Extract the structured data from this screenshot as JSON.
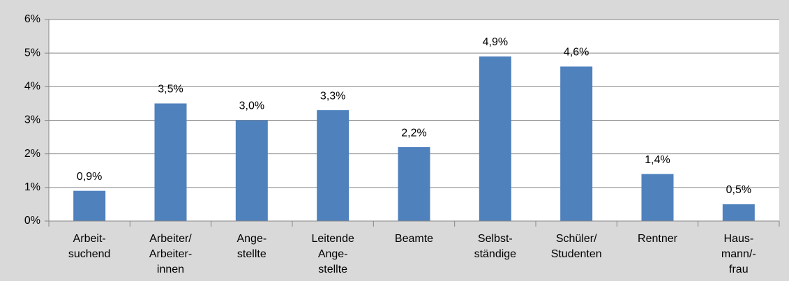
{
  "chart_data": {
    "type": "bar",
    "categories": [
      "Arbeit-\nsuchend",
      "Arbeiter/\nArbeiter-\ninnen",
      "Ange-\nstellte",
      "Leitende\nAnge-\nstellte",
      "Beamte",
      "Selbst-\nständige",
      "Schüler/\nStudenten",
      "Rentner",
      "Haus-\nmann/-\nfrau"
    ],
    "values": [
      0.9,
      3.5,
      3.0,
      3.3,
      2.2,
      4.9,
      4.6,
      1.4,
      0.5
    ],
    "value_labels": [
      "0,9%",
      "3,5%",
      "3,0%",
      "3,3%",
      "2,2%",
      "4,9%",
      "4,6%",
      "1,4%",
      "0,5%"
    ],
    "color": "#4f81bd",
    "ylim": [
      0,
      6
    ],
    "yticks": [
      {
        "value": 0,
        "label": "0%"
      },
      {
        "value": 1,
        "label": "1%"
      },
      {
        "value": 2,
        "label": "2%"
      },
      {
        "value": 3,
        "label": "3%"
      },
      {
        "value": 4,
        "label": "4%"
      },
      {
        "value": 5,
        "label": "5%"
      },
      {
        "value": 6,
        "label": "6%"
      }
    ],
    "grid": true
  }
}
